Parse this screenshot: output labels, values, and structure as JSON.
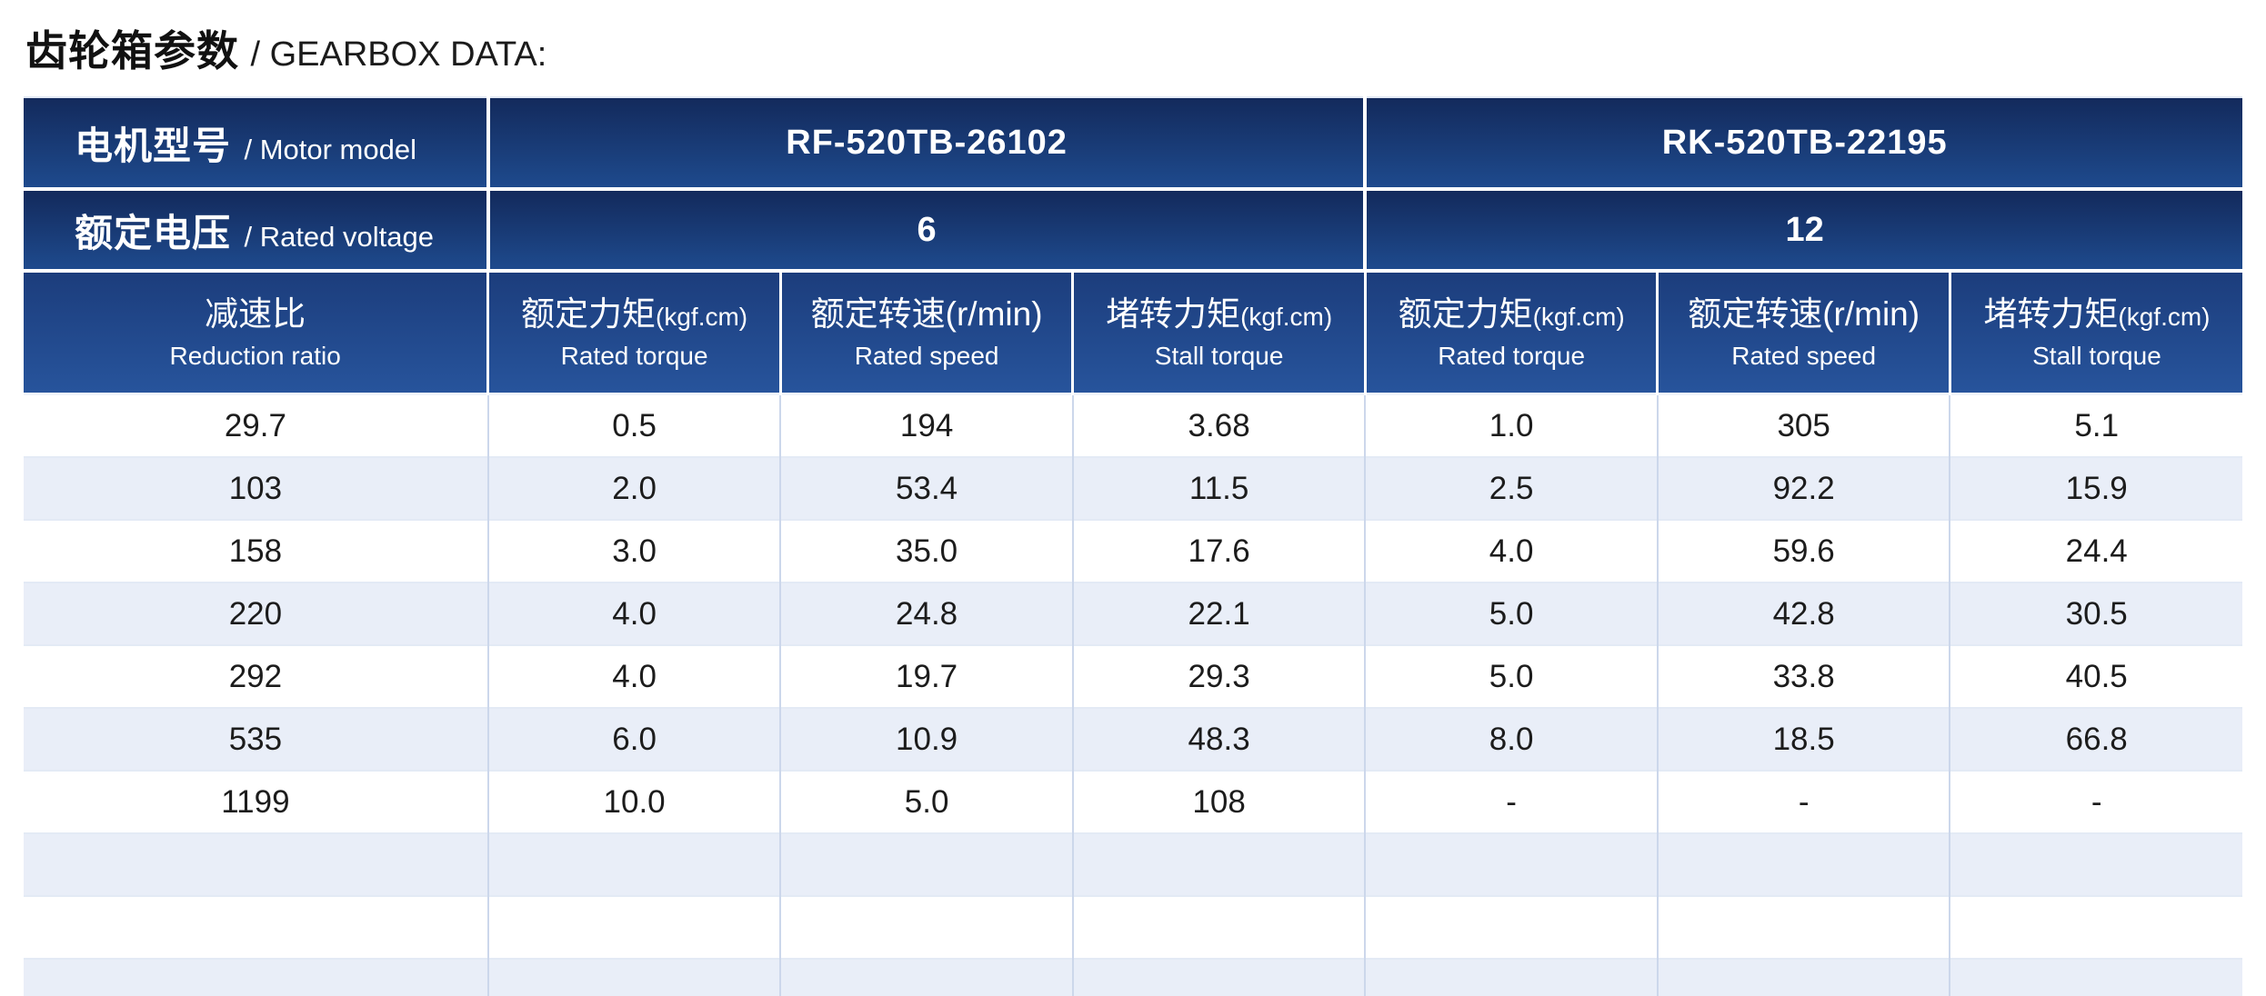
{
  "page": {
    "title_zh": "齿轮箱参数",
    "title_en": "/ GEARBOX DATA:"
  },
  "table": {
    "motor_model_label": {
      "zh": "电机型号",
      "en": "/ Motor model"
    },
    "rated_voltage_label": {
      "zh": "额定电压",
      "en": "/ Rated voltage"
    },
    "models": [
      {
        "name": "RF-520TB-26102",
        "voltage": "6"
      },
      {
        "name": "RK-520TB-22195",
        "voltage": "12"
      }
    ],
    "columns": {
      "reduction_ratio": {
        "zh": "减速比",
        "unit": "",
        "en": "Reduction ratio"
      },
      "rated_torque": {
        "zh": "额定力矩",
        "unit": "(kgf.cm)",
        "en": "Rated torque"
      },
      "rated_speed": {
        "zh": "额定转速",
        "unit": "(r/min)",
        "en": "Rated speed"
      },
      "stall_torque": {
        "zh": "堵转力矩",
        "unit": "(kgf.cm)",
        "en": "Stall torque"
      }
    },
    "rows": [
      [
        "29.7",
        "0.5",
        "194",
        "3.68",
        "1.0",
        "305",
        "5.1"
      ],
      [
        "103",
        "2.0",
        "53.4",
        "11.5",
        "2.5",
        "92.2",
        "15.9"
      ],
      [
        "158",
        "3.0",
        "35.0",
        "17.6",
        "4.0",
        "59.6",
        "24.4"
      ],
      [
        "220",
        "4.0",
        "24.8",
        "22.1",
        "5.0",
        "42.8",
        "30.5"
      ],
      [
        "292",
        "4.0",
        "19.7",
        "29.3",
        "5.0",
        "33.8",
        "40.5"
      ],
      [
        "535",
        "6.0",
        "10.9",
        "48.3",
        "8.0",
        "18.5",
        "66.8"
      ],
      [
        "1199",
        "10.0",
        "5.0",
        "108",
        "-",
        "-",
        "-"
      ],
      [
        "",
        "",
        "",
        "",
        "",
        "",
        ""
      ],
      [
        "",
        "",
        "",
        "",
        "",
        "",
        ""
      ],
      [
        "",
        "",
        "",
        "",
        "",
        "",
        ""
      ]
    ]
  },
  "colors": {
    "header_gradient_top": "#132a5c",
    "header_gradient_bottom": "#1e4a8d",
    "colhead_gradient_top": "#1c3d7c",
    "colhead_gradient_bottom": "#27549c",
    "stripe_row": "#e9eef8",
    "body_divider": "#ccd7eb",
    "text": "#1c1c1c"
  }
}
